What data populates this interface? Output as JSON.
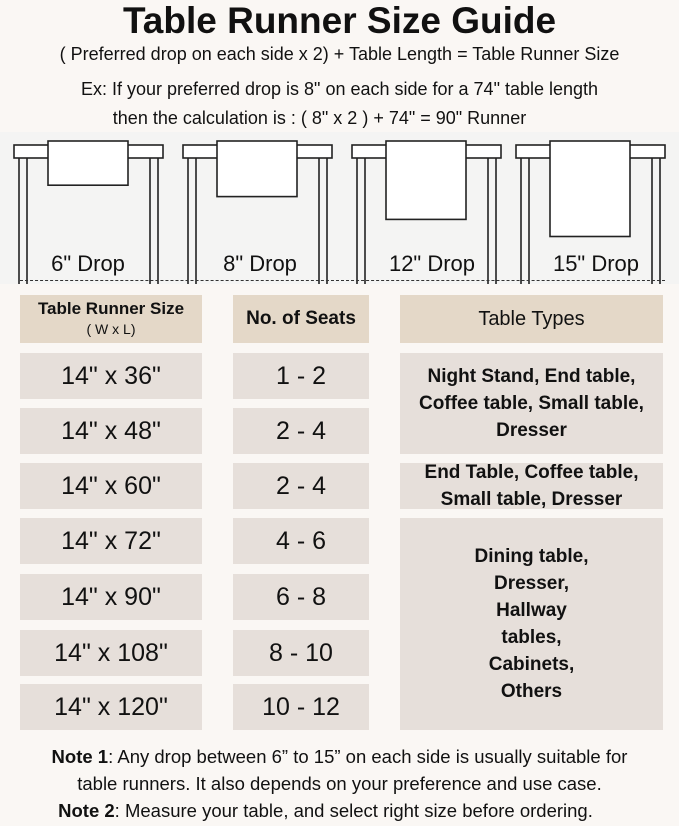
{
  "title": "Table Runner Size Guide",
  "formula": "( Preferred drop on each side x 2) + Table Length = Table Runner Size",
  "example_line1": "Ex: If your preferred drop is 8\" on each side for a 74\" table length",
  "example_line2": "then the calculation is : ( 8\" x 2 ) + 74\" = 90\" Runner",
  "drops": [
    {
      "label": "6\" Drop",
      "inches": 6
    },
    {
      "label": "8\" Drop",
      "inches": 8
    },
    {
      "label": "12\" Drop",
      "inches": 12
    },
    {
      "label": "15\" Drop",
      "inches": 15
    }
  ],
  "table": {
    "headers": {
      "size": "Table Runner Size",
      "size_sub": "( W x L)",
      "seats": "No. of Seats",
      "types": "Table Types"
    },
    "rows": [
      {
        "size": "14\" x 36\"",
        "seats": "1 - 2"
      },
      {
        "size": "14\" x 48\"",
        "seats": "2 - 4"
      },
      {
        "size": "14\" x 60\"",
        "seats": "2 - 4"
      },
      {
        "size": "14\" x 72\"",
        "seats": "4 - 6"
      },
      {
        "size": "14\" x 90\"",
        "seats": "6 - 8"
      },
      {
        "size": "14\" x 108\"",
        "seats": "8 - 10"
      },
      {
        "size": "14\" x 120\"",
        "seats": "10 - 12"
      }
    ],
    "types": [
      "Night Stand, End table, Coffee table, Small table, Dresser",
      "End Table, Coffee table, Small table, Dresser",
      "Dining table, Dresser, Hallway tables, Cabinets, Others"
    ]
  },
  "notes": {
    "note1_label": "Note 1",
    "note1_text": ": Any drop between 6” to 15” on each side is usually suitable for",
    "note1_text2": "table runners. It also depends on your preference and use case.",
    "note2_label": "Note 2",
    "note2_text": ": Measure your table, and select right size before ordering."
  },
  "colors": {
    "header_cell": "#e4d8c8",
    "body_cell": "#e6dfda",
    "background": "#faf7f4"
  }
}
